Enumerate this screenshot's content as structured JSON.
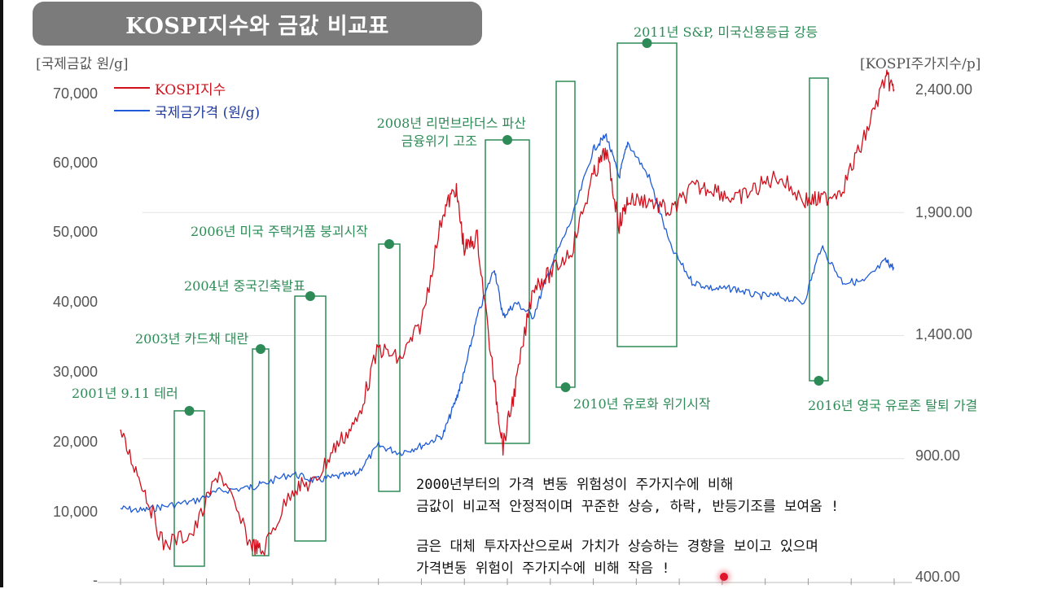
{
  "title": "KOSPI지수와 금값 비교표",
  "axis_units": {
    "left": "[국제금값 원/g]",
    "right": "[KOSPI주가지수/p]"
  },
  "legend": [
    {
      "label": "KOSPI지수",
      "color": "#d0101c"
    },
    {
      "label": "국제금가격 (원/g)",
      "color": "#1f5bd6"
    }
  ],
  "colors": {
    "event": "#2e8b57",
    "kospi": "#d0101c",
    "gold": "#1f5bd6"
  },
  "notes": [
    "2000년부터의 가격 변동 위험성이 주가지수에 비해",
    "금값이 비교적 안정적이며 꾸준한 상승, 하락, 반등기조를 보여옴 !",
    "금은 대체 투자자산으로써 가치가 상승하는 경향을 보이고 있으며",
    "가격변동 위험이 주가지수에 비해 작음 !"
  ],
  "chart_data": {
    "type": "line",
    "title": "KOSPI지수와 금값 비교표",
    "ylabel_left": "[국제금값 원/g]",
    "ylabel_right": "[KOSPI주가지수/p]",
    "y_left_ticks": [
      "70,000",
      "60,000",
      "50,000",
      "40,000",
      "30,000",
      "20,000",
      "10,000",
      "-"
    ],
    "y_right_ticks": [
      "2,400.00",
      "1,900.00",
      "1,400.00",
      "900.00",
      "400.00"
    ],
    "ylim_left": [
      0,
      70000
    ],
    "ylim_right": [
      400,
      2400
    ],
    "x": [
      2000.0,
      2000.5,
      2001.0,
      2001.7,
      2002.3,
      2003.0,
      2003.3,
      2004.0,
      2004.5,
      2005.0,
      2005.5,
      2006.0,
      2006.5,
      2007.0,
      2007.5,
      2007.8,
      2008.0,
      2008.3,
      2008.7,
      2008.9,
      2009.2,
      2009.6,
      2010.0,
      2010.5,
      2011.0,
      2011.3,
      2011.6,
      2011.8,
      2012.3,
      2012.8,
      2013.3,
      2013.8,
      2014.3,
      2014.8,
      2015.3,
      2015.9,
      2016.3,
      2016.8,
      2017.3,
      2017.8,
      2018.0
    ],
    "series": [
      {
        "name": "KOSPI지수",
        "axis": "right",
        "values": [
          1000,
          800,
          550,
          600,
          850,
          560,
          520,
          780,
          800,
          950,
          1050,
          1350,
          1300,
          1450,
          1900,
          2000,
          1750,
          1800,
          1200,
          950,
          1200,
          1600,
          1650,
          1750,
          2050,
          2150,
          1850,
          1950,
          1950,
          1900,
          2000,
          2000,
          1950,
          2000,
          2050,
          1950,
          1950,
          2000,
          2200,
          2450,
          2400
        ]
      },
      {
        "name": "국제금가격 (원/g)",
        "axis": "left",
        "values": [
          10500,
          10200,
          10800,
          11500,
          13000,
          13500,
          14000,
          15500,
          14500,
          15000,
          15500,
          19500,
          18500,
          19500,
          21000,
          26000,
          30000,
          38000,
          45000,
          38000,
          40000,
          38000,
          45000,
          52000,
          62000,
          64000,
          58000,
          63000,
          58000,
          48000,
          43000,
          42000,
          42000,
          41000,
          41000,
          40000,
          48000,
          43000,
          43000,
          46000,
          45000
        ]
      }
    ],
    "events": [
      {
        "label": "2001년 9.11 테러",
        "x": 2001.7
      },
      {
        "label": "2003년 카드채 대란",
        "x": 2003.3
      },
      {
        "label": "2004년 중국긴축발표",
        "x": 2004.4
      },
      {
        "label": "2006년 미국 주택거품 붕괴시작",
        "x": 2006.5
      },
      {
        "label": "2008년 리먼브라더스 파산",
        "label2": "금융위기 고조",
        "x": 2008.7
      },
      {
        "label": "2010년 유로화 위기시작",
        "x": 2010.3
      },
      {
        "label": "2011년 S&P, 미국신용등급 강등",
        "x": 2011.6
      },
      {
        "label": "2016년 영국 유로존 탈퇴 가결",
        "x": 2016.4
      }
    ]
  }
}
